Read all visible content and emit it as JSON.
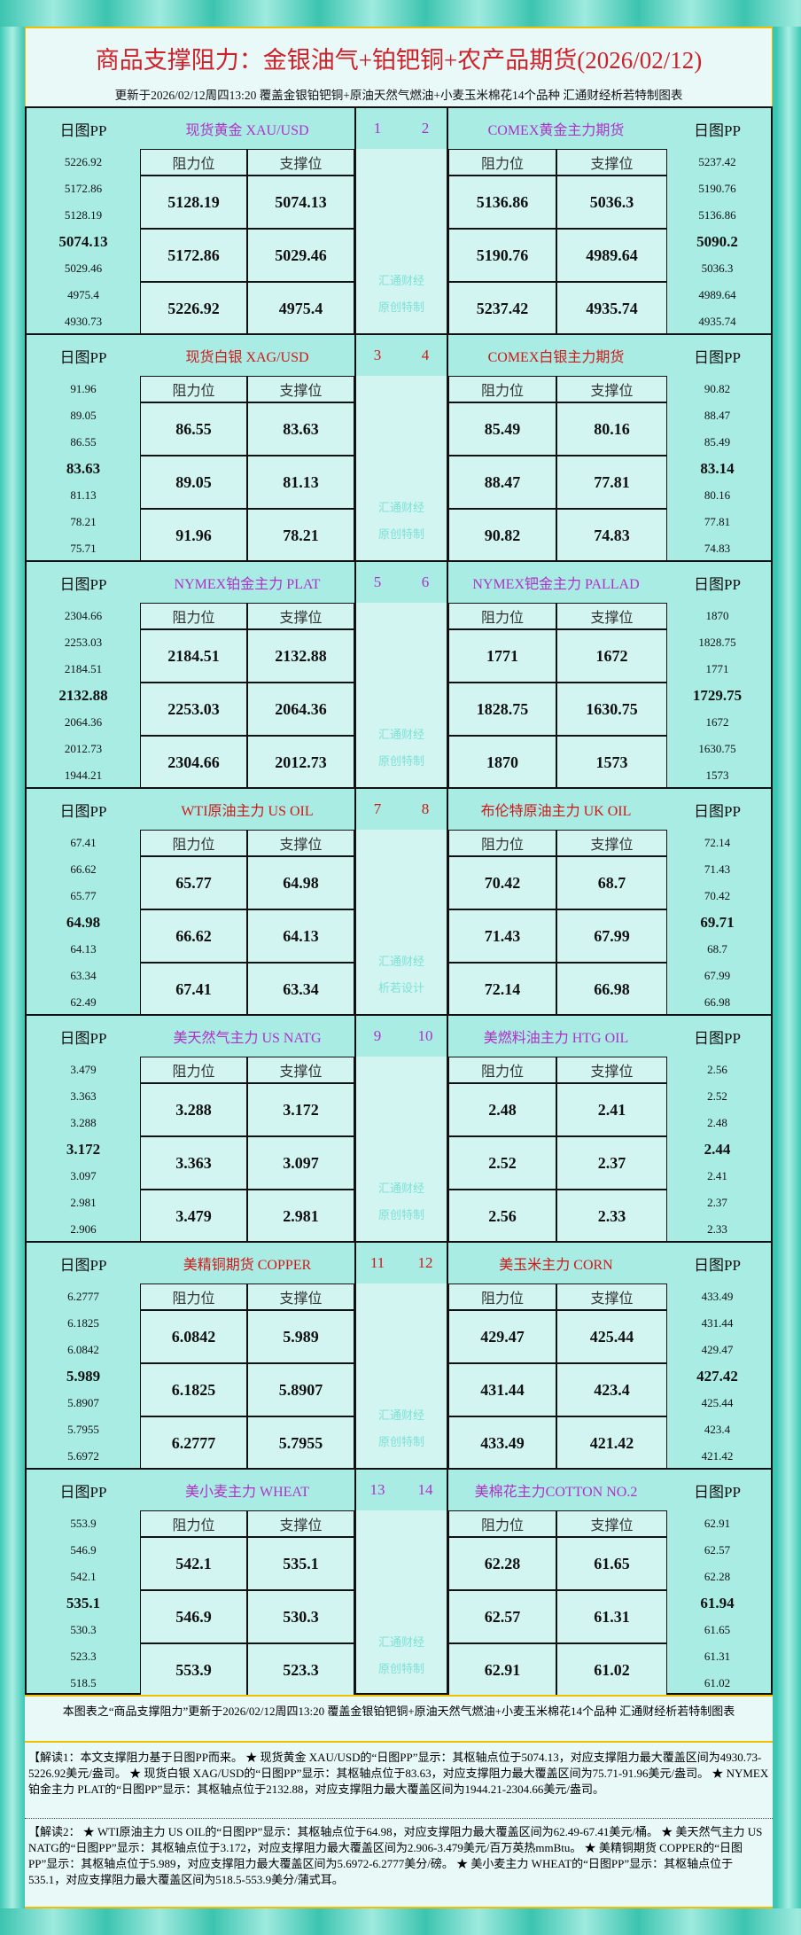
{
  "header": {
    "title": "商品支撑阻力：金银油气+铂钯铜+农产品期货(2026/02/12)",
    "subtitle": "更新于2026/02/12周四13:20 覆盖金银铂钯铜+原油天然气燃油+小麦玉米棉花14个品种 汇通财经析若特制图表"
  },
  "labels": {
    "pp": "日图PP",
    "res": "阻力位",
    "sup": "支撑位"
  },
  "colors": {
    "purple": "#b030c8",
    "red": "#d01818"
  },
  "sections": [
    {
      "color": "purple",
      "nums": [
        "1",
        "2"
      ],
      "watermark": [
        "汇通财经",
        "原创特制"
      ],
      "left": {
        "name": "现货黄金 XAU/USD",
        "pp": [
          "5226.92",
          "5172.86",
          "5128.19",
          "5074.13",
          "5029.46",
          "4975.4",
          "4930.73"
        ],
        "rows": [
          [
            "5128.19",
            "5074.13"
          ],
          [
            "5172.86",
            "5029.46"
          ],
          [
            "5226.92",
            "4975.4"
          ]
        ]
      },
      "right": {
        "name": "COMEX黄金主力期货",
        "pp": [
          "5237.42",
          "5190.76",
          "5136.86",
          "5090.2",
          "5036.3",
          "4989.64",
          "4935.74"
        ],
        "rows": [
          [
            "5136.86",
            "5036.3"
          ],
          [
            "5190.76",
            "4989.64"
          ],
          [
            "5237.42",
            "4935.74"
          ]
        ]
      }
    },
    {
      "color": "red",
      "nums": [
        "3",
        "4"
      ],
      "watermark": [
        "汇通财经",
        "原创特制"
      ],
      "left": {
        "name": "现货白银 XAG/USD",
        "pp": [
          "91.96",
          "89.05",
          "86.55",
          "83.63",
          "81.13",
          "78.21",
          "75.71"
        ],
        "rows": [
          [
            "86.55",
            "83.63"
          ],
          [
            "89.05",
            "81.13"
          ],
          [
            "91.96",
            "78.21"
          ]
        ]
      },
      "right": {
        "name": "COMEX白银主力期货",
        "pp": [
          "90.82",
          "88.47",
          "85.49",
          "83.14",
          "80.16",
          "77.81",
          "74.83"
        ],
        "rows": [
          [
            "85.49",
            "80.16"
          ],
          [
            "88.47",
            "77.81"
          ],
          [
            "90.82",
            "74.83"
          ]
        ]
      }
    },
    {
      "color": "purple",
      "nums": [
        "5",
        "6"
      ],
      "watermark": [
        "汇通财经",
        "原创特制"
      ],
      "left": {
        "name": "NYMEX铂金主力 PLAT",
        "pp": [
          "2304.66",
          "2253.03",
          "2184.51",
          "2132.88",
          "2064.36",
          "2012.73",
          "1944.21"
        ],
        "rows": [
          [
            "2184.51",
            "2132.88"
          ],
          [
            "2253.03",
            "2064.36"
          ],
          [
            "2304.66",
            "2012.73"
          ]
        ]
      },
      "right": {
        "name": "NYMEX钯金主力 PALLAD",
        "pp": [
          "1870",
          "1828.75",
          "1771",
          "1729.75",
          "1672",
          "1630.75",
          "1573"
        ],
        "rows": [
          [
            "1771",
            "1672"
          ],
          [
            "1828.75",
            "1630.75"
          ],
          [
            "1870",
            "1573"
          ]
        ]
      }
    },
    {
      "color": "red",
      "nums": [
        "7",
        "8"
      ],
      "watermark": [
        "汇通财经",
        "析若设计"
      ],
      "left": {
        "name": "WTI原油主力 US OIL",
        "pp": [
          "67.41",
          "66.62",
          "65.77",
          "64.98",
          "64.13",
          "63.34",
          "62.49"
        ],
        "rows": [
          [
            "65.77",
            "64.98"
          ],
          [
            "66.62",
            "64.13"
          ],
          [
            "67.41",
            "63.34"
          ]
        ]
      },
      "right": {
        "name": "布伦特原油主力 UK OIL",
        "pp": [
          "72.14",
          "71.43",
          "70.42",
          "69.71",
          "68.7",
          "67.99",
          "66.98"
        ],
        "rows": [
          [
            "70.42",
            "68.7"
          ],
          [
            "71.43",
            "67.99"
          ],
          [
            "72.14",
            "66.98"
          ]
        ]
      }
    },
    {
      "color": "purple",
      "nums": [
        "9",
        "10"
      ],
      "watermark": [
        "汇通财经",
        "原创特制"
      ],
      "left": {
        "name": "美天然气主力 US NATG",
        "pp": [
          "3.479",
          "3.363",
          "3.288",
          "3.172",
          "3.097",
          "2.981",
          "2.906"
        ],
        "rows": [
          [
            "3.288",
            "3.172"
          ],
          [
            "3.363",
            "3.097"
          ],
          [
            "3.479",
            "2.981"
          ]
        ]
      },
      "right": {
        "name": "美燃料油主力 HTG OIL",
        "pp": [
          "2.56",
          "2.52",
          "2.48",
          "2.44",
          "2.41",
          "2.37",
          "2.33"
        ],
        "rows": [
          [
            "2.48",
            "2.41"
          ],
          [
            "2.52",
            "2.37"
          ],
          [
            "2.56",
            "2.33"
          ]
        ]
      }
    },
    {
      "color": "red",
      "nums": [
        "11",
        "12"
      ],
      "watermark": [
        "汇通财经",
        "原创特制"
      ],
      "left": {
        "name": "美精铜期货 COPPER",
        "pp": [
          "6.2777",
          "6.1825",
          "6.0842",
          "5.989",
          "5.8907",
          "5.7955",
          "5.6972"
        ],
        "rows": [
          [
            "6.0842",
            "5.989"
          ],
          [
            "6.1825",
            "5.8907"
          ],
          [
            "6.2777",
            "5.7955"
          ]
        ]
      },
      "right": {
        "name": "美玉米主力 CORN",
        "pp": [
          "433.49",
          "431.44",
          "429.47",
          "427.42",
          "425.44",
          "423.4",
          "421.42"
        ],
        "rows": [
          [
            "429.47",
            "425.44"
          ],
          [
            "431.44",
            "423.4"
          ],
          [
            "433.49",
            "421.42"
          ]
        ]
      }
    },
    {
      "color": "purple",
      "nums": [
        "13",
        "14"
      ],
      "watermark": [
        "汇通财经",
        "原创特制"
      ],
      "left": {
        "name": "美小麦主力 WHEAT",
        "pp": [
          "553.9",
          "546.9",
          "542.1",
          "535.1",
          "530.3",
          "523.3",
          "518.5"
        ],
        "rows": [
          [
            "542.1",
            "535.1"
          ],
          [
            "546.9",
            "530.3"
          ],
          [
            "553.9",
            "523.3"
          ]
        ]
      },
      "right": {
        "name": "美棉花主力COTTON NO.2",
        "pp": [
          "62.91",
          "62.57",
          "62.28",
          "61.94",
          "61.65",
          "61.31",
          "61.02"
        ],
        "rows": [
          [
            "62.28",
            "61.65"
          ],
          [
            "62.57",
            "61.31"
          ],
          [
            "62.91",
            "61.02"
          ]
        ]
      }
    }
  ],
  "footer": {
    "note": "本图表之“商品支撑阻力”更新于2026/02/12周四13:20 覆盖金银铂钯铜+原油天然气燃油+小麦玉米棉花14个品种 汇通财经析若特制图表",
    "explain1": "【解读1：本文支撑阻力基于日图PP而来。 ★ 现货黄金 XAU/USD的“日图PP”显示：其枢轴点位于5074.13，对应支撑阻力最大覆盖区间为4930.73-5226.92美元/盎司。 ★ 现货白银 XAG/USD的“日图PP”显示：其枢轴点位于83.63，对应支撑阻力最大覆盖区间为75.71-91.96美元/盎司。 ★ NYMEX铂金主力 PLAT的“日图PP”显示：其枢轴点位于2132.88，对应支撑阻力最大覆盖区间为1944.21-2304.66美元/盎司。",
    "explain2": "【解读2： ★ WTI原油主力 US OIL的“日图PP”显示：其枢轴点位于64.98，对应支撑阻力最大覆盖区间为62.49-67.41美元/桶。 ★ 美天然气主力 US NATG的“日图PP”显示：其枢轴点位于3.172，对应支撑阻力最大覆盖区间为2.906-3.479美元/百万英热mmBtu。 ★ 美精铜期货 COPPER的“日图PP”显示：其枢轴点位于5.989，对应支撑阻力最大覆盖区间为5.6972-6.2777美分/磅。 ★ 美小麦主力 WHEAT的“日图PP”显示：其枢轴点位于535.1，对应支撑阻力最大覆盖区间为518.5-553.9美分/蒲式耳。"
  }
}
